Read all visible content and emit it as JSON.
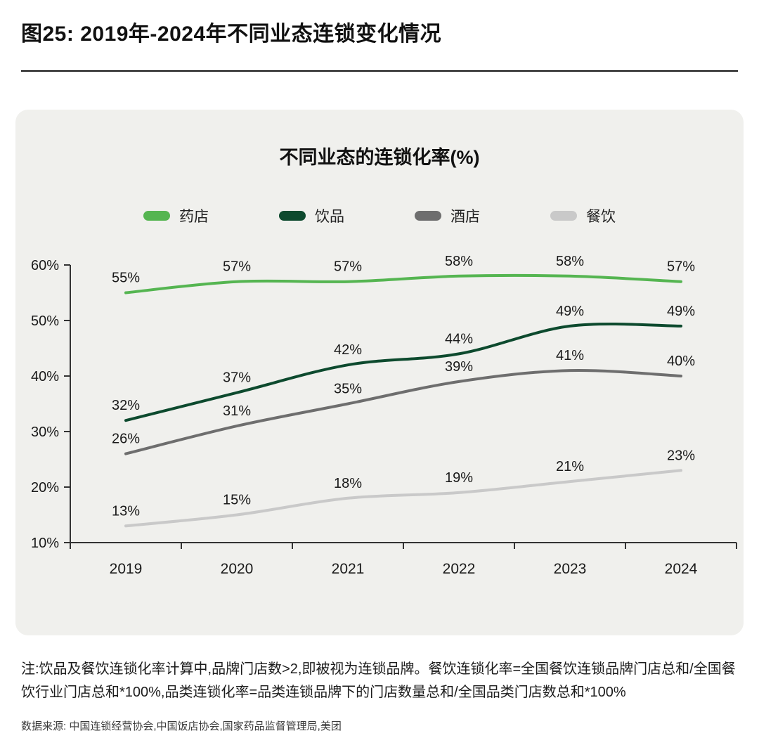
{
  "page": {
    "title": "图25: 2019年-2024年不同业态连锁变化情况",
    "note": "注:饮品及餐饮连锁化率计算中,品牌门店数>2,即被视为连锁品牌。餐饮连锁化率=全国餐饮连锁品牌门店总和/全国餐饮行业门店总和*100%,品类连锁化率=品类连锁品牌下的门店数量总和/全国品类门店数总和*100%",
    "source": "数据来源: 中国连锁经营协会,中国饭店协会,国家药品监督管理局,美团"
  },
  "chart_data": {
    "type": "line",
    "title": "不同业态的连锁化率(%)",
    "categories": [
      "2019",
      "2020",
      "2021",
      "2022",
      "2023",
      "2024"
    ],
    "series": [
      {
        "id": "pharmacy",
        "name": "药店",
        "color": "#55b551",
        "values": [
          55,
          57,
          57,
          58,
          58,
          57
        ]
      },
      {
        "id": "beverage",
        "name": "饮品",
        "color": "#0d4a2e",
        "values": [
          32,
          37,
          42,
          44,
          49,
          49
        ]
      },
      {
        "id": "hotel",
        "name": "酒店",
        "color": "#6e6e6e",
        "values": [
          26,
          31,
          35,
          39,
          41,
          40
        ]
      },
      {
        "id": "restaurant",
        "name": "餐饮",
        "color": "#c9c9c9",
        "values": [
          13,
          15,
          18,
          19,
          21,
          23
        ]
      }
    ],
    "ylim": [
      10,
      60
    ],
    "yticks": [
      10,
      20,
      30,
      40,
      50,
      60
    ],
    "ytick_suffix": "%",
    "value_suffix": "%",
    "legend_position": "top",
    "grid": false,
    "axis_color": "#333333",
    "label_color": "#1a1a1a"
  }
}
